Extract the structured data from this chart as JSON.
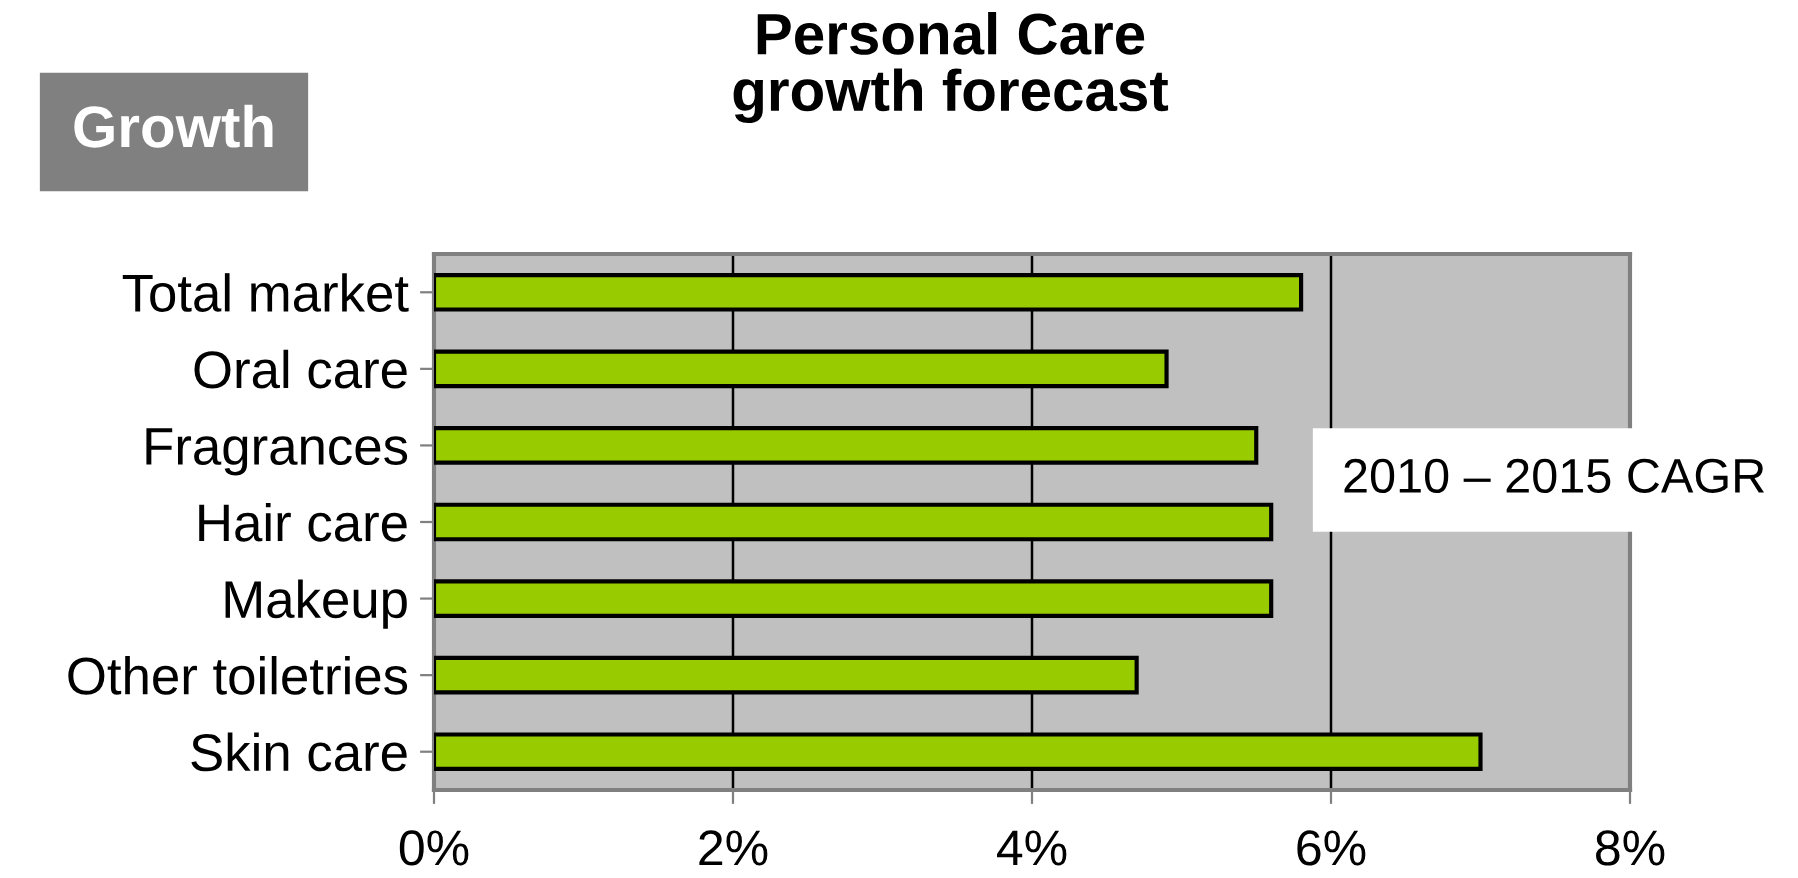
{
  "chart_data": {
    "type": "bar",
    "orientation": "horizontal",
    "title": "Personal Care\ngrowth forecast",
    "categories": [
      "Total market",
      "Oral care",
      "Fragrances",
      "Hair care",
      "Makeup",
      "Other toiletries",
      "Skin care"
    ],
    "values": [
      5.8,
      4.9,
      5.5,
      5.6,
      5.6,
      4.7,
      7.0
    ],
    "color": "#99cc00",
    "xlim": [
      0,
      8
    ],
    "xticks": [
      {
        "value": 0,
        "label": "0%"
      },
      {
        "value": 2,
        "label": "2%"
      },
      {
        "value": 4,
        "label": "4%"
      },
      {
        "value": 6,
        "label": "6%"
      },
      {
        "value": 8,
        "label": "8%"
      }
    ],
    "grid": "x",
    "annotations": [
      "Growth",
      "2010 – 2015 CAGR"
    ]
  }
}
